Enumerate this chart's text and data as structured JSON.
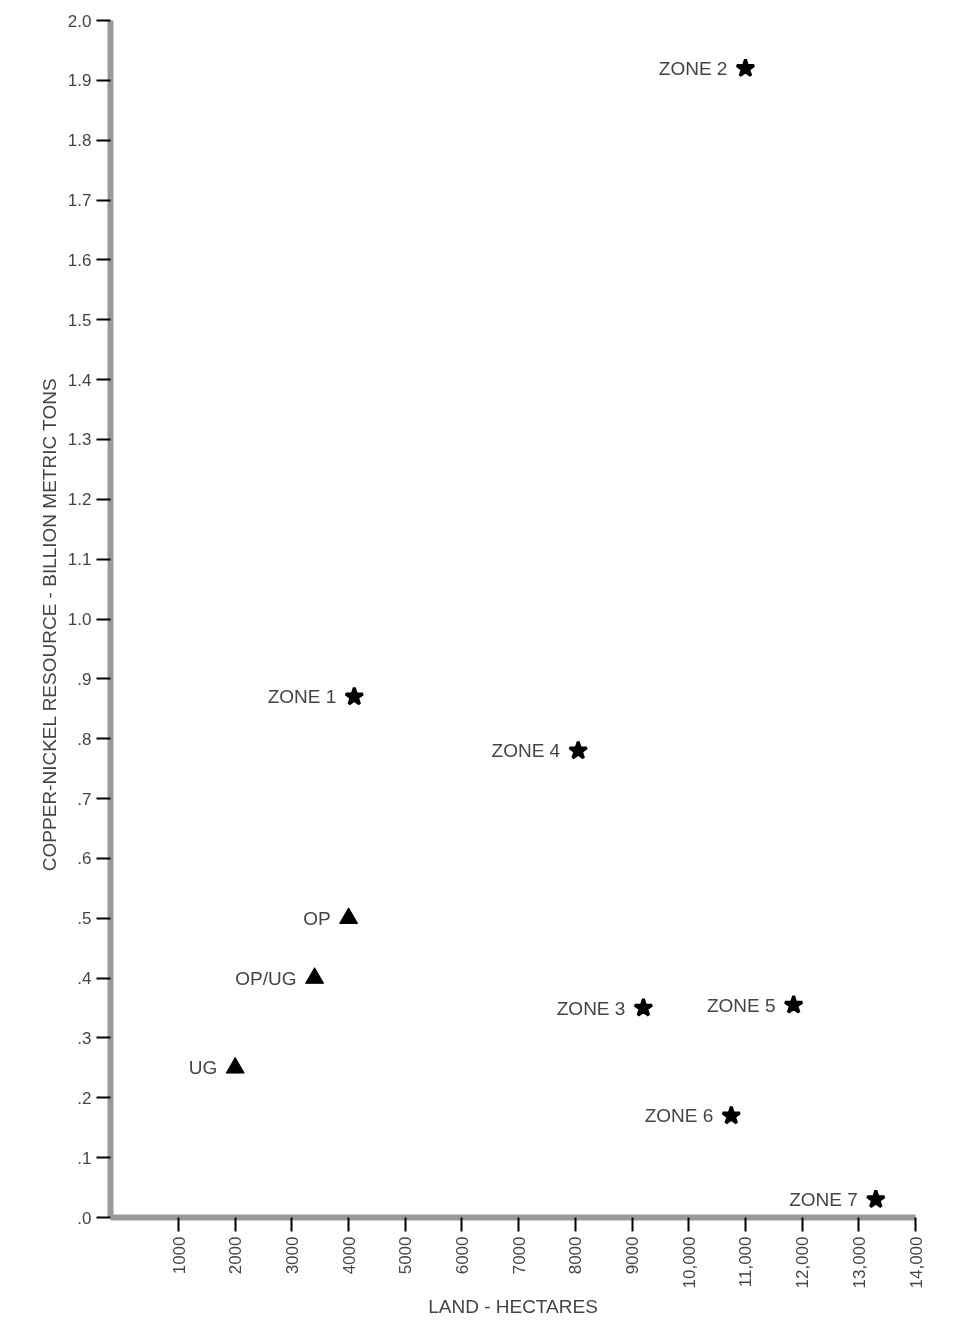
{
  "chart_data": {
    "type": "scatter",
    "xlabel": "LAND - HECTARES",
    "ylabel": "COPPER-NICKEL RESOURCE  -  BILLION METRIC TONS",
    "series": [
      {
        "marker": "triangle",
        "color": "#000000",
        "x": [
          4000,
          3400,
          2000
        ],
        "values": [
          0.5,
          0.4,
          0.25
        ]
      },
      {
        "marker": "star",
        "color": "#000000",
        "x": [
          4100,
          11000,
          9200,
          8050,
          11850,
          10750,
          13300
        ],
        "values": [
          0.87,
          1.92,
          0.35,
          0.78,
          0.355,
          0.17,
          0.03
        ]
      }
    ],
    "annotations": [
      {
        "text": "OP",
        "x": 4000,
        "y": 0.5
      },
      {
        "text": "OP/UG",
        "x": 3400,
        "y": 0.4
      },
      {
        "text": "UG",
        "x": 2000,
        "y": 0.25
      },
      {
        "text": "ZONE 1",
        "x": 4100,
        "y": 0.87
      },
      {
        "text": "ZONE 2",
        "x": 11000,
        "y": 1.92
      },
      {
        "text": "ZONE 3",
        "x": 9200,
        "y": 0.35
      },
      {
        "text": "ZONE 4",
        "x": 8050,
        "y": 0.78
      },
      {
        "text": "ZONE 5",
        "x": 11850,
        "y": 0.355
      },
      {
        "text": "ZONE 6",
        "x": 10750,
        "y": 0.17
      },
      {
        "text": "ZONE 7",
        "x": 13300,
        "y": 0.03
      }
    ],
    "xlim": [
      -200,
      14000
    ],
    "ylim": [
      0,
      2.0
    ],
    "xticks": [
      1000,
      2000,
      3000,
      4000,
      5000,
      6000,
      7000,
      8000,
      9000,
      {
        "value": 10000,
        "label": "10,000"
      },
      {
        "value": 11000,
        "label": "11,000"
      },
      {
        "value": 12000,
        "label": "12,000"
      },
      {
        "value": 13000,
        "label": "13,000"
      },
      {
        "value": 14000,
        "label": "14,000"
      }
    ],
    "yticks": [
      {
        "value": 0,
        "label": ".0"
      },
      {
        "value": 0.1,
        "label": ".1"
      },
      {
        "value": 0.2,
        "label": ".2"
      },
      {
        "value": 0.3,
        "label": ".3"
      },
      {
        "value": 0.4,
        "label": ".4"
      },
      {
        "value": 0.5,
        "label": ".5"
      },
      {
        "value": 0.6,
        "label": ".6"
      },
      {
        "value": 0.7,
        "label": ".7"
      },
      {
        "value": 0.8,
        "label": ".8"
      },
      {
        "value": 0.9,
        "label": ".9"
      },
      {
        "value": 1.0,
        "label": "1.0"
      },
      {
        "value": 1.1,
        "label": "1.1"
      },
      {
        "value": 1.2,
        "label": "1.2"
      },
      {
        "value": 1.3,
        "label": "1.3"
      },
      {
        "value": 1.4,
        "label": "1.4"
      },
      {
        "value": 1.5,
        "label": "1.5"
      },
      {
        "value": 1.6,
        "label": "1.6"
      },
      {
        "value": 1.7,
        "label": "1.7"
      },
      {
        "value": 1.8,
        "label": "1.8"
      },
      {
        "value": 1.9,
        "label": "1.9"
      },
      {
        "value": 2.0,
        "label": "2.0"
      }
    ],
    "grid": false
  }
}
